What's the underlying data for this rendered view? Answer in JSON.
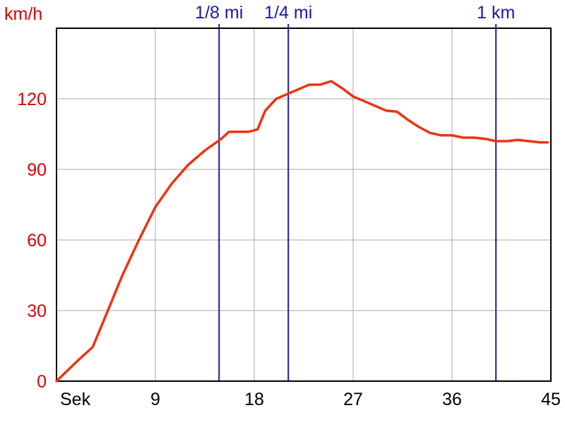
{
  "chart_data": {
    "type": "line",
    "title": "",
    "xlabel": "Sek",
    "ylabel": "km/h",
    "xlim": [
      0,
      45
    ],
    "ylim": [
      0,
      150
    ],
    "x_ticks": [
      9,
      18,
      27,
      36,
      45
    ],
    "y_ticks": [
      0,
      30,
      60,
      90,
      120
    ],
    "grid": true,
    "colors": {
      "series": "#ee3311",
      "y_axis_text": "#dd0000",
      "markers": "#1a1aa8",
      "grid": "#a8a8a8",
      "frame": "#000000"
    },
    "markers": [
      {
        "label": "1/8 mi",
        "x": 14.8
      },
      {
        "label": "1/4 mi",
        "x": 21.1
      },
      {
        "label": "1 km",
        "x": 40.0
      }
    ],
    "series": [
      {
        "x": [
          0,
          1,
          2,
          3.3,
          4.5,
          6,
          7.5,
          9,
          10.5,
          12,
          13.5,
          15,
          15.7,
          16.5,
          17.5,
          18.3,
          19,
          20,
          21,
          22,
          23,
          24,
          25,
          26,
          27,
          28,
          29,
          30,
          31,
          32,
          33,
          34,
          35,
          36,
          37,
          38,
          39,
          40,
          41,
          42,
          43,
          44,
          44.7
        ],
        "values": [
          0,
          4.5,
          9,
          14.5,
          28,
          45,
          60,
          74,
          84,
          92,
          98,
          103,
          106,
          106,
          106,
          107,
          115,
          120,
          122,
          124,
          126,
          126,
          127.5,
          124.5,
          121,
          119,
          117,
          115,
          114.5,
          111,
          108,
          105.5,
          104.5,
          104.5,
          103.5,
          103.5,
          103,
          102,
          102,
          102.5,
          102,
          101.5,
          101.5
        ]
      }
    ]
  }
}
